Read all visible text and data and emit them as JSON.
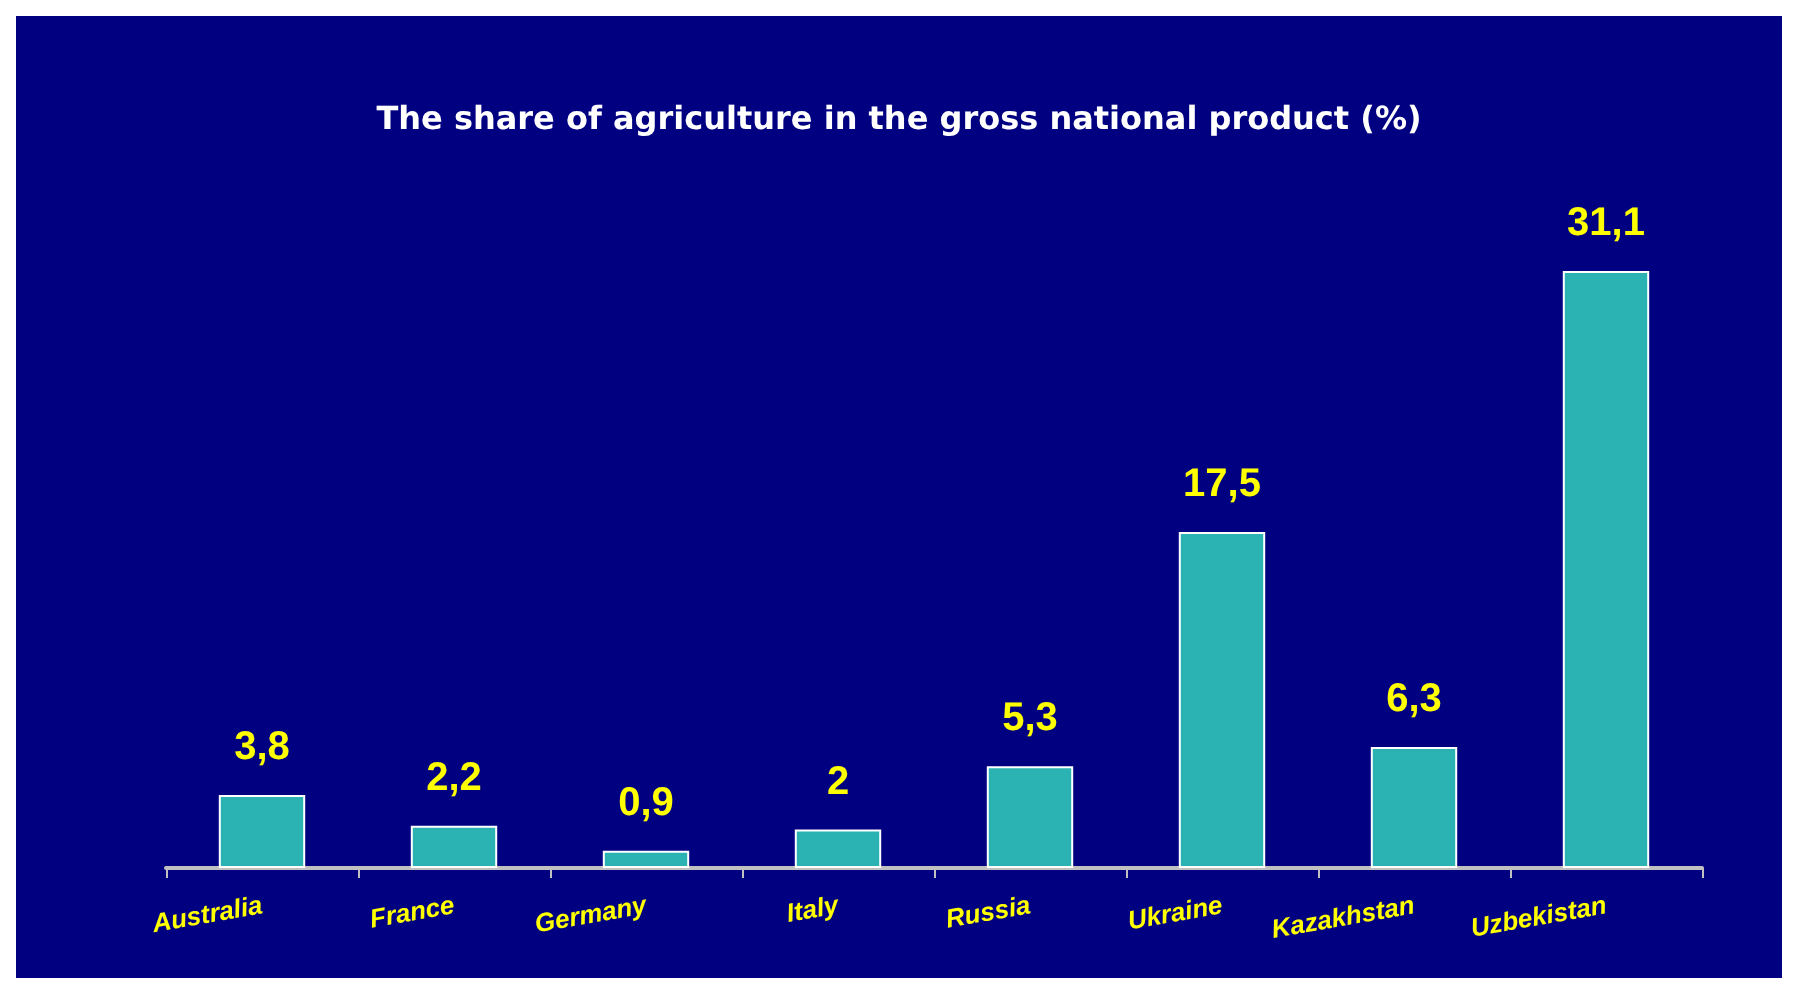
{
  "chart_data": {
    "type": "bar",
    "title": "The share of agriculture in the gross national product (%)",
    "categories": [
      "Australia",
      "France",
      "Germany",
      "Italy",
      "Russia",
      "Ukraine",
      "Kazakhstan",
      "Uzbekistan"
    ],
    "values": [
      3.8,
      2.2,
      0.9,
      2,
      5.3,
      17.5,
      6.3,
      31.1
    ],
    "value_labels": [
      "3,8",
      "2,2",
      "0,9",
      "2",
      "5,3",
      "17,5",
      "6,3",
      "31,1"
    ],
    "color": "#2bb3b3"
  }
}
